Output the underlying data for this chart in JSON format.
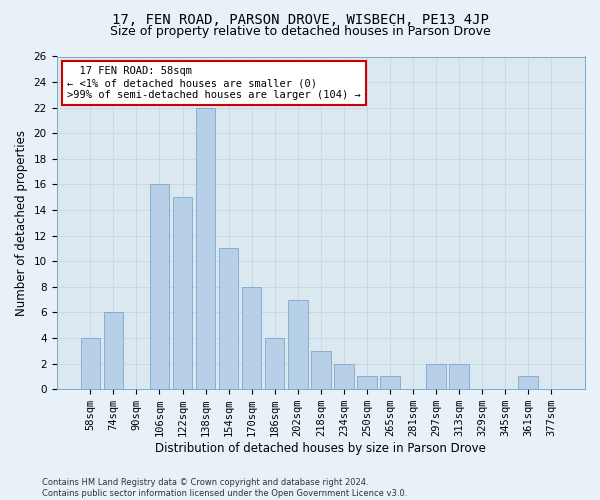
{
  "title_line1": "17, FEN ROAD, PARSON DROVE, WISBECH, PE13 4JP",
  "title_line2": "Size of property relative to detached houses in Parson Drove",
  "xlabel": "Distribution of detached houses by size in Parson Drove",
  "ylabel": "Number of detached properties",
  "footnote": "Contains HM Land Registry data © Crown copyright and database right 2024.\nContains public sector information licensed under the Open Government Licence v3.0.",
  "annotation_title": "17 FEN ROAD: 58sqm",
  "annotation_line2": "← <1% of detached houses are smaller (0)",
  "annotation_line3": ">99% of semi-detached houses are larger (104) →",
  "bar_color": "#b8cfe8",
  "bar_edge_color": "#6a9fc8",
  "annotation_box_color": "#ffffff",
  "annotation_box_edge": "#cc0000",
  "categories": [
    "58sqm",
    "74sqm",
    "90sqm",
    "106sqm",
    "122sqm",
    "138sqm",
    "154sqm",
    "170sqm",
    "186sqm",
    "202sqm",
    "218sqm",
    "234sqm",
    "250sqm",
    "265sqm",
    "281sqm",
    "297sqm",
    "313sqm",
    "329sqm",
    "345sqm",
    "361sqm",
    "377sqm"
  ],
  "values": [
    4,
    6,
    0,
    16,
    15,
    22,
    11,
    8,
    4,
    7,
    3,
    2,
    1,
    1,
    0,
    2,
    2,
    0,
    0,
    1,
    0
  ],
  "ylim": [
    0,
    26
  ],
  "yticks": [
    0,
    2,
    4,
    6,
    8,
    10,
    12,
    14,
    16,
    18,
    20,
    22,
    24,
    26
  ],
  "grid_color": "#c8d4e8",
  "bg_color": "#dce8f0",
  "fig_bg_color": "#e8f0f8",
  "title_fontsize": 10,
  "subtitle_fontsize": 9,
  "axis_label_fontsize": 8.5,
  "tick_fontsize": 7.5,
  "annot_fontsize": 7.5,
  "footnote_fontsize": 6
}
